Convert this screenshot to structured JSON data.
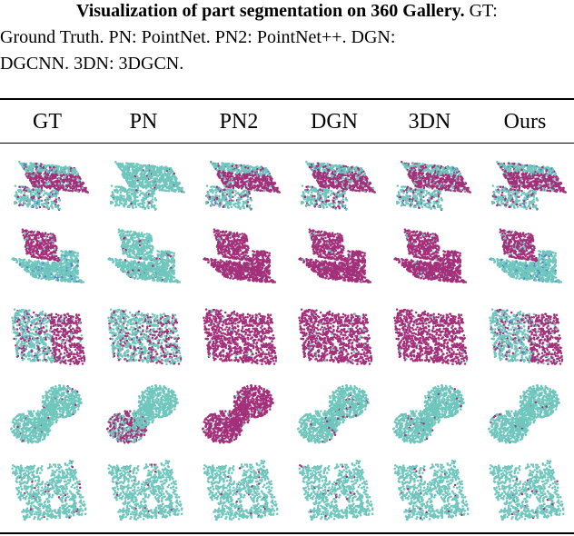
{
  "caption": {
    "line1_bold": "Visualization of part segmentation on 360 Gallery.",
    "line1_rest": " GT:",
    "line2": "Ground Truth. PN: PointNet. PN2: PointNet++. DGN:",
    "line3": "DGCNN. 3DN: 3DGCN."
  },
  "table": {
    "columns": [
      "GT",
      "PN",
      "PN2",
      "DGN",
      "3DN",
      "Ours"
    ],
    "rows": [
      {
        "shape": "box",
        "colors": [
          "mix",
          "teal",
          "mix",
          "mix",
          "mix",
          "mix"
        ]
      },
      {
        "shape": "chair",
        "colors": [
          "mixtop",
          "teal",
          "magenta",
          "magenta",
          "magenta",
          "mixtop"
        ]
      },
      {
        "shape": "block",
        "colors": [
          "mix",
          "mixteal",
          "magenta",
          "magenta",
          "magenta",
          "mix"
        ]
      },
      {
        "shape": "spool",
        "colors": [
          "teal",
          "tealbase",
          "magenta",
          "teal",
          "teal",
          "teal"
        ]
      },
      {
        "shape": "bracket",
        "colors": [
          "teal",
          "teal",
          "teal",
          "teal",
          "teal",
          "teal"
        ]
      }
    ]
  },
  "colors": {
    "teal": "#6fc6bd",
    "magenta": "#a3307a",
    "accent_blue": "#5a86c8"
  }
}
